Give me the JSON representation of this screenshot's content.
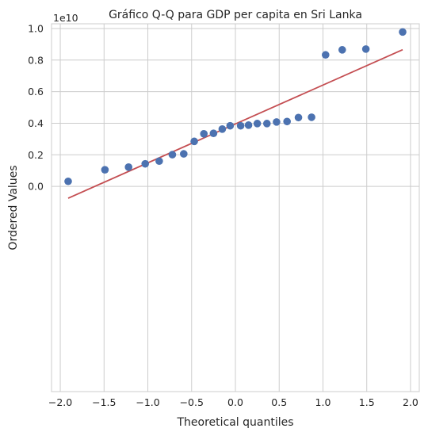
{
  "chart_data": {
    "type": "scatter",
    "title": "Gráfico Q-Q para GDP per capita en Sri Lanka",
    "xlabel": "Theoretical quantiles",
    "ylabel": "Ordered Values",
    "y_offset_label": "1e10",
    "xlim": [
      -2.1,
      2.1
    ],
    "ylim": [
      -1.3,
      1.03
    ],
    "grid": true,
    "xticks": [
      -2.0,
      -1.5,
      -1.0,
      -0.5,
      0.0,
      0.5,
      1.0,
      1.5,
      2.0
    ],
    "xtick_labels": [
      "−2.0",
      "−1.5",
      "−1.0",
      "−0.5",
      "0.0",
      "0.5",
      "1.0",
      "1.5",
      "2.0"
    ],
    "yticks": [
      0.0,
      0.2,
      0.4,
      0.6,
      0.8,
      1.0
    ],
    "ytick_labels": [
      "0.0",
      "0.2",
      "0.4",
      "0.6",
      "0.8",
      "1.0"
    ],
    "series": [
      {
        "role": "points",
        "color": "#4c72b0",
        "x": [
          -1.91,
          -1.49,
          -1.22,
          -1.03,
          -0.87,
          -0.72,
          -0.59,
          -0.47,
          -0.36,
          -0.25,
          -0.15,
          -0.06,
          0.06,
          0.15,
          0.25,
          0.36,
          0.47,
          0.59,
          0.72,
          0.87,
          1.03,
          1.22,
          1.49,
          1.91
        ],
        "y": [
          0.032,
          0.105,
          0.122,
          0.143,
          0.16,
          0.201,
          0.206,
          0.285,
          0.333,
          0.336,
          0.363,
          0.384,
          0.384,
          0.388,
          0.398,
          0.398,
          0.408,
          0.411,
          0.436,
          0.438,
          0.833,
          0.865,
          0.87,
          0.978
        ]
      },
      {
        "role": "fit-line",
        "color": "#c44e52",
        "x": [
          -1.91,
          1.91
        ],
        "y": [
          -0.075,
          0.866
        ]
      }
    ]
  }
}
